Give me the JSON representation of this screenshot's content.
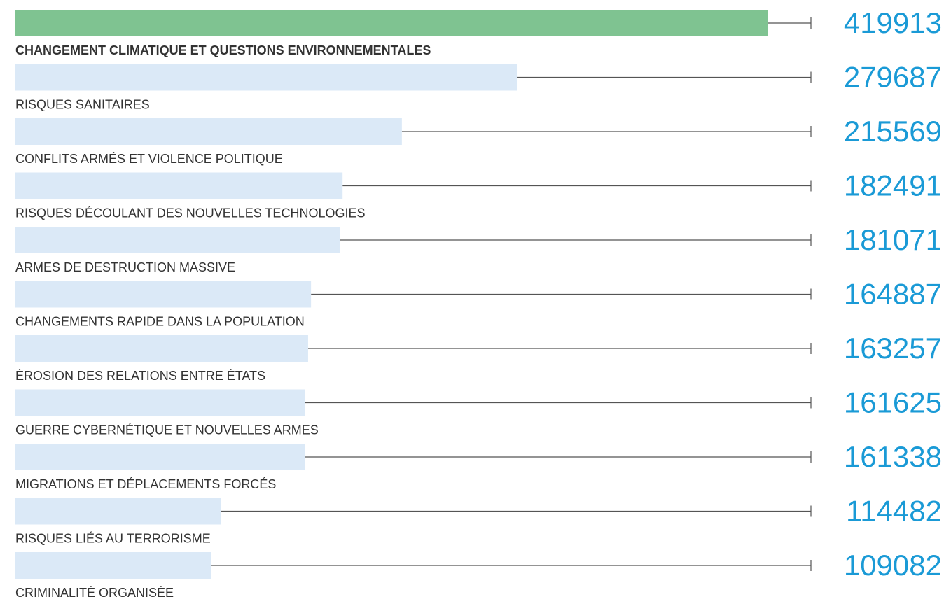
{
  "chart_data": {
    "type": "bar",
    "orientation": "horizontal",
    "categories": [
      "CHANGEMENT CLIMATIQUE ET QUESTIONS ENVIRONNEMENTALES",
      "RISQUES SANITAIRES",
      "CONFLITS ARMÉS ET VIOLENCE POLITIQUE",
      "RISQUES DÉCOULANT DES NOUVELLES TECHNOLOGIES",
      "ARMES DE DESTRUCTION MASSIVE",
      "CHANGEMENTS RAPIDE DANS LA POPULATION",
      "ÉROSION DES RELATIONS ENTRE ÉTATS",
      "GUERRE CYBERNÉTIQUE ET NOUVELLES ARMES",
      "MIGRATIONS ET DÉPLACEMENTS FORCÉS",
      "RISQUES LIÉS AU TERRORISME",
      "CRIMINALITÉ ORGANISÉE"
    ],
    "values": [
      419913,
      279687,
      215569,
      182491,
      181071,
      164887,
      163257,
      161625,
      161338,
      114482,
      109082
    ],
    "color": "#dbe9f7",
    "highlight": {
      "index": 0,
      "color": "#7fc391"
    },
    "value_label_color": "#1a9ad6"
  }
}
